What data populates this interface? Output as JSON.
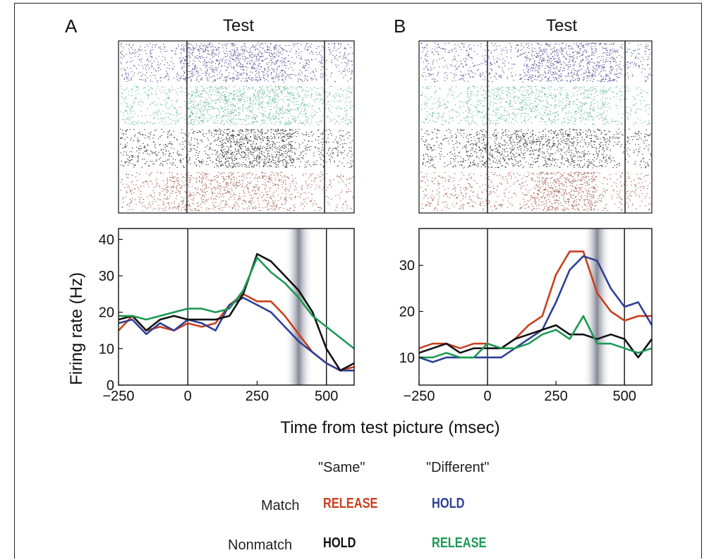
{
  "panels": [
    {
      "letter": "A",
      "raster_title": "Test"
    },
    {
      "letter": "B",
      "raster_title": "Test"
    }
  ],
  "shared_xlabel": "Time from test picture (msec)",
  "colors": {
    "red": "#c8401e",
    "blue": "#2e3f96",
    "black": "#111111",
    "green": "#1c9a55",
    "raster_blue": "#3c3a8c",
    "raster_green": "#4fae8e",
    "raster_black": "#1a1a1a",
    "raster_red": "#9a4a3a"
  },
  "legend": {
    "col_same": "\"Same\"",
    "col_different": "\"Different\"",
    "row_match": "Match",
    "row_nonmatch": "Nonmatch",
    "match_same": "RELEASE",
    "match_different": "HOLD",
    "nonmatch_same": "HOLD",
    "nonmatch_different": "RELEASE"
  },
  "chart_data": [
    {
      "type": "line",
      "panel": "A",
      "ylabel": "Firing rate (Hz)",
      "xlim": [
        -250,
        600
      ],
      "ylim": [
        0,
        43
      ],
      "xticks": [
        -250,
        0,
        250,
        500
      ],
      "yticks": [
        0,
        10,
        20,
        30,
        40
      ],
      "vlines": [
        0,
        500
      ],
      "shaded_window": [
        350,
        450
      ],
      "x": [
        -250,
        -200,
        -150,
        -100,
        -50,
        0,
        50,
        100,
        150,
        200,
        250,
        300,
        350,
        400,
        450,
        500,
        550,
        600
      ],
      "series": [
        {
          "color": "red",
          "values": [
            15,
            19,
            15,
            16,
            15,
            17,
            16,
            17,
            22,
            25,
            23,
            23,
            19,
            14,
            9,
            6,
            4,
            5
          ]
        },
        {
          "color": "blue",
          "values": [
            17,
            18,
            14,
            17,
            15,
            18,
            17,
            15,
            22,
            24,
            22,
            20,
            16,
            12,
            9,
            6,
            4,
            4
          ]
        },
        {
          "color": "black",
          "values": [
            18,
            19,
            15,
            18,
            19,
            18,
            18,
            18,
            19,
            25,
            36,
            34,
            30,
            26,
            20,
            10,
            4,
            6
          ]
        },
        {
          "color": "green",
          "values": [
            19,
            19,
            18,
            19,
            20,
            21,
            21,
            20,
            21,
            26,
            35,
            31,
            28,
            24,
            19,
            16,
            13,
            10
          ]
        }
      ]
    },
    {
      "type": "line",
      "panel": "B",
      "ylabel": "",
      "xlim": [
        -250,
        600
      ],
      "ylim": [
        4,
        38
      ],
      "xticks": [
        -250,
        0,
        250,
        500
      ],
      "yticks": [
        10,
        20,
        30
      ],
      "vlines": [
        0,
        500
      ],
      "shaded_window": [
        350,
        450
      ],
      "x": [
        -250,
        -200,
        -150,
        -100,
        -50,
        0,
        50,
        100,
        150,
        200,
        250,
        300,
        350,
        400,
        450,
        500,
        550,
        600
      ],
      "series": [
        {
          "color": "red",
          "values": [
            12,
            13,
            13,
            12,
            13,
            13,
            12,
            14,
            17,
            19,
            28,
            33,
            33,
            24,
            20,
            18,
            19,
            19
          ]
        },
        {
          "color": "blue",
          "values": [
            10,
            9,
            10,
            10,
            10,
            10,
            10,
            12,
            14,
            16,
            22,
            29,
            32,
            31,
            25,
            21,
            22,
            17
          ]
        },
        {
          "color": "black",
          "values": [
            11,
            12,
            13,
            11,
            12,
            12,
            12,
            14,
            15,
            16,
            17,
            15,
            15,
            14,
            15,
            14,
            10,
            14
          ]
        },
        {
          "color": "green",
          "values": [
            10,
            10,
            11,
            10,
            10,
            13,
            12,
            12,
            13,
            15,
            16,
            14,
            19,
            13,
            13,
            12,
            11,
            12
          ]
        }
      ]
    }
  ]
}
